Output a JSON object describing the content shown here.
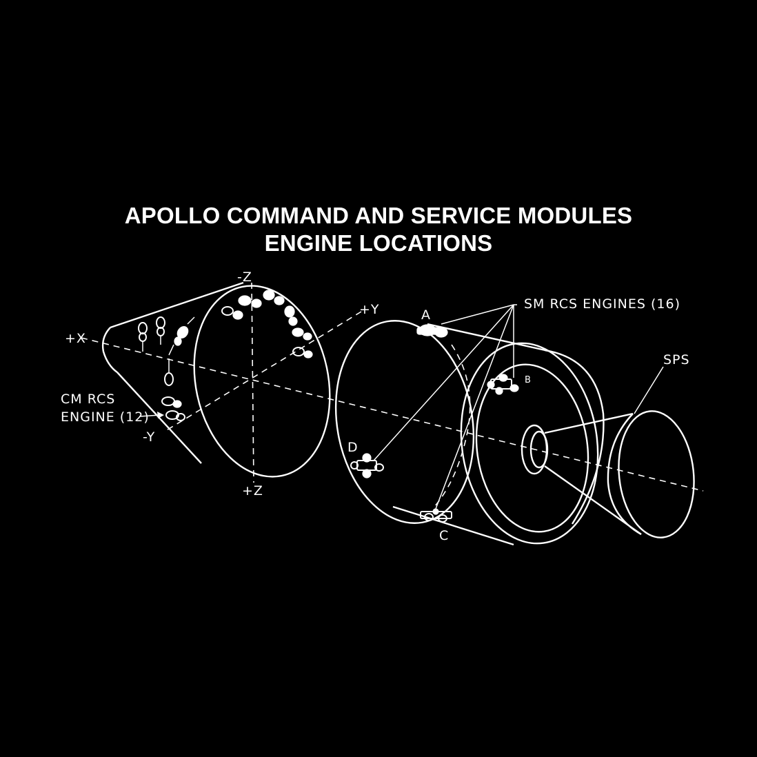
{
  "title": {
    "line1": "APOLLO COMMAND AND SERVICE MODULES",
    "line2": "ENGINE LOCATIONS"
  },
  "axes": {
    "minus_z": "-Z",
    "plus_y": "+Y",
    "plus_x": "+X",
    "minus_y": "-Y",
    "plus_z": "+Z"
  },
  "labels": {
    "cm_rcs_line1": "CM RCS",
    "cm_rcs_line2": "ENGINE (12)",
    "sm_rcs": "SM RCS ENGINES (16)",
    "sps": "SPS",
    "quad_a": "A",
    "quad_b": "B",
    "quad_c": "C",
    "quad_d": "D"
  },
  "colors": {
    "background": "#000000",
    "line": "#ffffff"
  }
}
